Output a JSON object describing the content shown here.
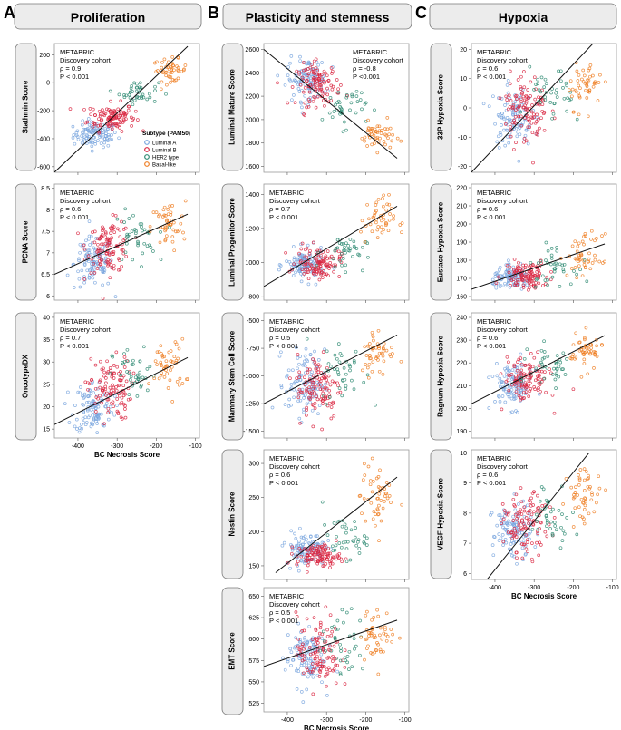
{
  "colors": {
    "luminal_a": "#7aa6de",
    "luminal_b": "#d9243f",
    "her2": "#2e8a72",
    "basal": "#ef7f25",
    "regression": "#111111",
    "label_box": "#ececec"
  },
  "panels": [
    {
      "letter": "A",
      "title": "Proliferation"
    },
    {
      "letter": "B",
      "title": "Plasticity and stemness"
    },
    {
      "letter": "C",
      "title": "Hypoxia"
    }
  ],
  "legend": {
    "title": "Subtype (PAM50)",
    "items": [
      "Luminal A",
      "Luminal B",
      "HER2 type",
      "Basal-like"
    ]
  },
  "x_axis_label": "BC Necrosis Score",
  "x_ticks": [
    -400,
    -300,
    -200,
    -100
  ],
  "x_range": [
    -460,
    -90
  ],
  "cohort_line1": "METABRIC",
  "cohort_line2": "Discovery cohort",
  "chart_data": [
    {
      "type": "scatter",
      "id": "stathmin",
      "ylabel": "Stathmin Score",
      "yticks": [
        -600,
        -400,
        -200,
        0,
        200
      ],
      "ylim": [
        -640,
        280
      ],
      "rho": "ρ = 0.9",
      "p": "P < 0.001",
      "reg": [
        [
          -460,
          -640
        ],
        [
          -120,
          260
        ]
      ],
      "clusters": {
        "luminal_a": {
          "x": -355,
          "y": -370,
          "sx": 28,
          "sy": 45
        },
        "luminal_b": {
          "x": -315,
          "y": -245,
          "sx": 30,
          "sy": 50
        },
        "her2": {
          "x": -245,
          "y": -70,
          "sx": 25,
          "sy": 40
        },
        "basal": {
          "x": -165,
          "y": 90,
          "sx": 22,
          "sy": 40
        }
      }
    },
    {
      "type": "scatter",
      "id": "pcna",
      "ylabel": "PCNA Score",
      "yticks": [
        6.0,
        6.5,
        7.0,
        7.5,
        8.0,
        8.5
      ],
      "ylim": [
        5.9,
        8.6
      ],
      "rho": "ρ = 0.6",
      "p": "P < 0.001",
      "reg": [
        [
          -460,
          6.5
        ],
        [
          -120,
          7.9
        ]
      ],
      "clusters": {
        "luminal_a": {
          "x": -360,
          "y": 6.75,
          "sx": 25,
          "sy": 0.3
        },
        "luminal_b": {
          "x": -320,
          "y": 7.15,
          "sx": 28,
          "sy": 0.3
        },
        "her2": {
          "x": -255,
          "y": 7.35,
          "sx": 28,
          "sy": 0.3
        },
        "basal": {
          "x": -170,
          "y": 7.6,
          "sx": 22,
          "sy": 0.3
        }
      }
    },
    {
      "type": "scatter",
      "id": "oncotype",
      "ylabel": "OncotypeDX",
      "yticks": [
        15,
        20,
        25,
        30,
        35,
        40
      ],
      "ylim": [
        13,
        41
      ],
      "rho": "ρ = 0.7",
      "p": "P < 0.001",
      "reg": [
        [
          -460,
          16
        ],
        [
          -120,
          31
        ]
      ],
      "clusters": {
        "luminal_a": {
          "x": -360,
          "y": 20,
          "sx": 25,
          "sy": 3
        },
        "luminal_b": {
          "x": -320,
          "y": 24,
          "sx": 28,
          "sy": 3.5
        },
        "her2": {
          "x": -255,
          "y": 27,
          "sx": 28,
          "sy": 3
        },
        "basal": {
          "x": -170,
          "y": 29,
          "sx": 22,
          "sy": 3
        }
      }
    },
    {
      "type": "scatter",
      "id": "luminal_mature",
      "ylabel": "Luminal Mature Score",
      "yticks": [
        1600,
        1800,
        2000,
        2200,
        2400,
        2600
      ],
      "ylim": [
        1550,
        2650
      ],
      "rho": "ρ = -0.8",
      "p": "P <0.001",
      "reg": [
        [
          -460,
          2600
        ],
        [
          -120,
          1670
        ]
      ],
      "clusters": {
        "luminal_a": {
          "x": -350,
          "y": 2340,
          "sx": 25,
          "sy": 90
        },
        "luminal_b": {
          "x": -320,
          "y": 2300,
          "sx": 28,
          "sy": 90
        },
        "her2": {
          "x": -255,
          "y": 2110,
          "sx": 28,
          "sy": 90
        },
        "basal": {
          "x": -170,
          "y": 1860,
          "sx": 22,
          "sy": 60
        }
      }
    },
    {
      "type": "scatter",
      "id": "luminal_progenitor",
      "ylabel": "Luminal Progenitor Score",
      "yticks": [
        800,
        1000,
        1200,
        1400
      ],
      "ylim": [
        780,
        1460
      ],
      "rho": "ρ = 0.7",
      "p": "P < 0.001",
      "reg": [
        [
          -460,
          860
        ],
        [
          -120,
          1330
        ]
      ],
      "clusters": {
        "luminal_a": {
          "x": -355,
          "y": 985,
          "sx": 25,
          "sy": 45
        },
        "luminal_b": {
          "x": -320,
          "y": 1000,
          "sx": 28,
          "sy": 45
        },
        "her2": {
          "x": -255,
          "y": 1060,
          "sx": 28,
          "sy": 50
        },
        "basal": {
          "x": -170,
          "y": 1250,
          "sx": 22,
          "sy": 70
        }
      }
    },
    {
      "type": "scatter",
      "id": "mammary_stem",
      "ylabel": "Mammary Stem Cell Score",
      "yticks": [
        -1500,
        -1250,
        -1000,
        -750,
        -500
      ],
      "ylim": [
        -1560,
        -430
      ],
      "rho": "ρ = 0.5",
      "p": "P < 0.001",
      "reg": [
        [
          -460,
          -1250
        ],
        [
          -120,
          -630
        ]
      ],
      "clusters": {
        "luminal_a": {
          "x": -355,
          "y": -1060,
          "sx": 25,
          "sy": 150
        },
        "luminal_b": {
          "x": -320,
          "y": -1100,
          "sx": 28,
          "sy": 150
        },
        "her2": {
          "x": -255,
          "y": -960,
          "sx": 28,
          "sy": 140
        },
        "basal": {
          "x": -170,
          "y": -780,
          "sx": 22,
          "sy": 110
        }
      }
    },
    {
      "type": "scatter",
      "id": "nestin",
      "ylabel": "Nestin Score",
      "yticks": [
        150,
        200,
        250,
        300
      ],
      "ylim": [
        130,
        320
      ],
      "rho": "ρ = 0.6",
      "p": "P < 0.001",
      "reg": [
        [
          -430,
          140
        ],
        [
          -120,
          280
        ]
      ],
      "clusters": {
        "luminal_a": {
          "x": -355,
          "y": 175,
          "sx": 25,
          "sy": 12
        },
        "luminal_b": {
          "x": -320,
          "y": 165,
          "sx": 28,
          "sy": 8
        },
        "her2": {
          "x": -255,
          "y": 190,
          "sx": 28,
          "sy": 15
        },
        "basal": {
          "x": -170,
          "y": 250,
          "sx": 22,
          "sy": 25
        }
      }
    },
    {
      "type": "scatter",
      "id": "emt",
      "ylabel": "EMT Score",
      "yticks": [
        525,
        550,
        575,
        600,
        625,
        650
      ],
      "ylim": [
        515,
        660
      ],
      "rho": "ρ = 0.5",
      "p": "P < 0.001",
      "reg": [
        [
          -460,
          568
        ],
        [
          -120,
          622
        ]
      ],
      "clusters": {
        "luminal_a": {
          "x": -355,
          "y": 580,
          "sx": 25,
          "sy": 18
        },
        "luminal_b": {
          "x": -320,
          "y": 585,
          "sx": 28,
          "sy": 22
        },
        "her2": {
          "x": -255,
          "y": 595,
          "sx": 28,
          "sy": 18
        },
        "basal": {
          "x": -170,
          "y": 605,
          "sx": 22,
          "sy": 15
        }
      }
    },
    {
      "type": "scatter",
      "id": "hyp33p",
      "ylabel": "33P Hypoxia Score",
      "yticks": [
        -20,
        -10,
        0,
        10,
        20
      ],
      "ylim": [
        -22,
        22
      ],
      "rho": "ρ = 0.6",
      "p": "P < 0.001",
      "reg": [
        [
          -460,
          -22
        ],
        [
          -150,
          22
        ]
      ],
      "clusters": {
        "luminal_a": {
          "x": -355,
          "y": -3,
          "sx": 25,
          "sy": 5
        },
        "luminal_b": {
          "x": -320,
          "y": 0,
          "sx": 28,
          "sy": 6
        },
        "her2": {
          "x": -255,
          "y": 3,
          "sx": 28,
          "sy": 5
        },
        "basal": {
          "x": -170,
          "y": 8,
          "sx": 22,
          "sy": 4
        }
      }
    },
    {
      "type": "scatter",
      "id": "eustace",
      "ylabel": "Eustace Hypoxia Score",
      "yticks": [
        160,
        170,
        180,
        190,
        200,
        210,
        220
      ],
      "ylim": [
        158,
        222
      ],
      "rho": "ρ = 0.6",
      "p": "P < 0.001",
      "reg": [
        [
          -460,
          164
        ],
        [
          -120,
          189
        ]
      ],
      "clusters": {
        "luminal_a": {
          "x": -355,
          "y": 170,
          "sx": 25,
          "sy": 3
        },
        "luminal_b": {
          "x": -320,
          "y": 172,
          "sx": 28,
          "sy": 4
        },
        "her2": {
          "x": -255,
          "y": 177,
          "sx": 28,
          "sy": 5
        },
        "basal": {
          "x": -170,
          "y": 182,
          "sx": 22,
          "sy": 6
        }
      }
    },
    {
      "type": "scatter",
      "id": "ragnum",
      "ylabel": "Ragnum Hypoxia Score",
      "yticks": [
        190,
        200,
        210,
        220,
        230,
        240
      ],
      "ylim": [
        187,
        242
      ],
      "rho": "ρ = 0.6",
      "p": "P < 0.001",
      "reg": [
        [
          -460,
          202
        ],
        [
          -120,
          232
        ]
      ],
      "clusters": {
        "luminal_a": {
          "x": -355,
          "y": 210,
          "sx": 25,
          "sy": 5
        },
        "luminal_b": {
          "x": -320,
          "y": 213,
          "sx": 28,
          "sy": 5
        },
        "her2": {
          "x": -255,
          "y": 218,
          "sx": 28,
          "sy": 5
        },
        "basal": {
          "x": -170,
          "y": 225,
          "sx": 22,
          "sy": 4
        }
      }
    },
    {
      "type": "scatter",
      "id": "vegf",
      "ylabel": "VEGF-Hypoxia Score",
      "yticks": [
        6,
        7,
        8,
        9,
        10
      ],
      "ylim": [
        5.8,
        10.1
      ],
      "rho": "ρ = 0.6",
      "p": "P < 0.001",
      "reg": [
        [
          -420,
          5.8
        ],
        [
          -160,
          10
        ]
      ],
      "clusters": {
        "luminal_a": {
          "x": -355,
          "y": 7.4,
          "sx": 25,
          "sy": 0.45
        },
        "luminal_b": {
          "x": -320,
          "y": 7.6,
          "sx": 28,
          "sy": 0.5
        },
        "her2": {
          "x": -255,
          "y": 8.0,
          "sx": 28,
          "sy": 0.5
        },
        "basal": {
          "x": -170,
          "y": 8.6,
          "sx": 22,
          "sy": 0.45
        }
      }
    }
  ]
}
